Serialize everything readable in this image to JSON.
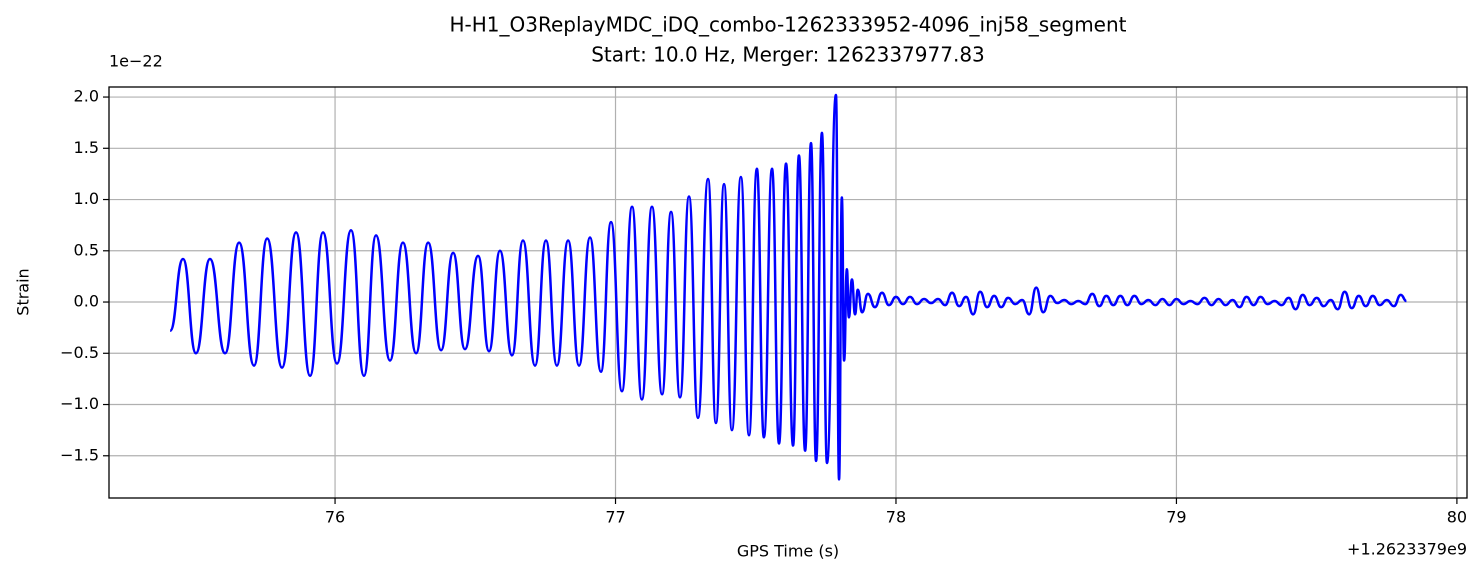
{
  "chart_data": {
    "type": "line",
    "title": "H-H1_O3ReplayMDC_iDQ_combo-1262333952-4096_inj58_segment",
    "subtitle": "Start: 10.0 Hz, Merger: 1262337977.83",
    "x_label": "GPS Time (s)",
    "y_label": "Strain",
    "x_offset_text": "+1.2623379e9",
    "y_offset_text": "1e−22",
    "grid": true,
    "xlim": [
      75.194,
      80.036
    ],
    "ylim": [
      -1.912,
      2.098
    ],
    "xticks": [
      76,
      77,
      78,
      79,
      80
    ],
    "yticks": [
      {
        "value": -1.5,
        "label": "−1.5"
      },
      {
        "value": -1,
        "label": "−1.0"
      },
      {
        "value": -0.5,
        "label": "−0.5"
      },
      {
        "value": 0,
        "label": "0.0"
      },
      {
        "value": 0.5,
        "label": "0.5"
      },
      {
        "value": 1,
        "label": "1.0"
      },
      {
        "value": 1.5,
        "label": "1.5"
      },
      {
        "value": 2,
        "label": "2.0"
      }
    ],
    "series": [
      {
        "color": "#0000ff",
        "x": [
          75.412,
          75.458,
          75.504,
          75.554,
          75.608,
          75.658,
          75.711,
          75.758,
          75.811,
          75.861,
          75.911,
          75.957,
          76.007,
          76.057,
          76.103,
          76.146,
          76.196,
          76.242,
          76.289,
          76.332,
          76.378,
          76.421,
          76.463,
          76.51,
          76.549,
          76.588,
          76.631,
          76.67,
          76.713,
          76.752,
          76.791,
          76.831,
          76.87,
          76.909,
          76.948,
          76.984,
          77.023,
          77.059,
          77.094,
          77.13,
          77.166,
          77.198,
          77.23,
          77.262,
          77.294,
          77.33,
          77.358,
          77.387,
          77.415,
          77.447,
          77.476,
          77.504,
          77.529,
          77.558,
          77.583,
          77.608,
          77.633,
          77.654,
          77.676,
          77.697,
          77.715,
          77.736,
          77.754,
          77.786,
          77.797,
          77.807,
          77.815,
          77.825,
          77.832,
          77.843,
          77.854,
          77.864,
          77.879,
          77.9,
          77.925,
          77.95,
          77.975,
          78.0,
          78.025,
          78.05,
          78.075,
          78.1,
          78.125,
          78.15,
          78.175,
          78.2,
          78.225,
          78.25,
          78.275,
          78.3,
          78.325,
          78.35,
          78.375,
          78.4,
          78.425,
          78.45,
          78.475,
          78.5,
          78.525,
          78.55,
          78.575,
          78.6,
          78.625,
          78.65,
          78.675,
          78.7,
          78.725,
          78.75,
          78.775,
          78.8,
          78.825,
          78.85,
          78.875,
          78.9,
          78.925,
          78.95,
          78.975,
          79.0,
          79.025,
          79.05,
          79.075,
          79.1,
          79.125,
          79.15,
          79.175,
          79.2,
          79.225,
          79.25,
          79.275,
          79.3,
          79.325,
          79.35,
          79.375,
          79.4,
          79.425,
          79.45,
          79.475,
          79.5,
          79.525,
          79.55,
          79.575,
          79.6,
          79.625,
          79.65,
          79.675,
          79.7,
          79.725,
          79.75,
          79.775,
          79.8,
          79.82
        ],
        "values": [
          -0.28,
          0.42,
          -0.5,
          0.42,
          -0.5,
          0.58,
          -0.62,
          0.62,
          -0.64,
          0.68,
          -0.72,
          0.68,
          -0.6,
          0.7,
          -0.72,
          0.65,
          -0.57,
          0.58,
          -0.5,
          0.58,
          -0.47,
          0.48,
          -0.46,
          0.45,
          -0.48,
          0.5,
          -0.52,
          0.6,
          -0.62,
          0.6,
          -0.62,
          0.6,
          -0.62,
          0.63,
          -0.68,
          0.78,
          -0.87,
          0.93,
          -0.95,
          0.93,
          -0.9,
          0.88,
          -0.93,
          1.03,
          -1.13,
          1.2,
          -1.18,
          1.15,
          -1.25,
          1.22,
          -1.3,
          1.3,
          -1.32,
          1.3,
          -1.38,
          1.35,
          -1.4,
          1.43,
          -1.45,
          1.55,
          -1.55,
          1.65,
          -1.57,
          2.02,
          -1.73,
          1.02,
          -0.57,
          0.32,
          -0.15,
          0.22,
          -0.12,
          0.12,
          -0.1,
          0.08,
          -0.05,
          0.09,
          -0.03,
          0.05,
          -0.02,
          0.05,
          -0.02,
          0.03,
          -0.01,
          0.03,
          -0.03,
          0.09,
          -0.04,
          0.05,
          -0.12,
          0.1,
          -0.05,
          0.06,
          -0.05,
          0.04,
          -0.02,
          0.02,
          -0.12,
          0.14,
          -0.1,
          0.06,
          -0.01,
          0.02,
          -0.02,
          0.01,
          -0.02,
          0.08,
          -0.04,
          0.06,
          -0.03,
          0.06,
          -0.03,
          0.06,
          -0.02,
          0.02,
          -0.03,
          0.03,
          -0.03,
          0.03,
          -0.02,
          0.01,
          -0.02,
          0.04,
          -0.03,
          0.03,
          -0.03,
          0.02,
          -0.05,
          0.05,
          -0.03,
          0.05,
          -0.02,
          0.01,
          -0.03,
          0.04,
          -0.07,
          0.07,
          -0.03,
          0.04,
          -0.04,
          0.02,
          -0.07,
          0.1,
          -0.06,
          0.06,
          -0.04,
          0.06,
          -0.03,
          0.02,
          -0.04,
          0.07,
          0.01
        ]
      }
    ]
  }
}
